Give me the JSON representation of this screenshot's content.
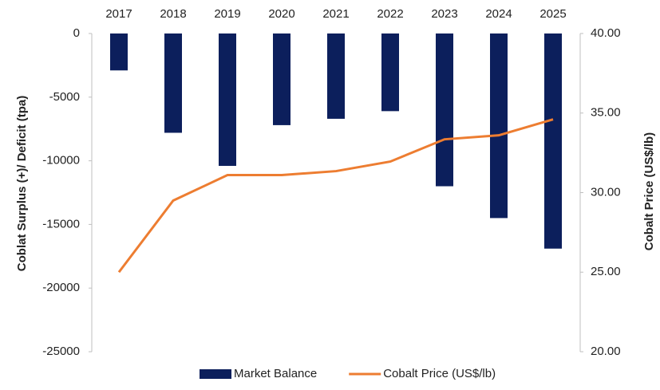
{
  "chart_data": {
    "type": "bar",
    "categories": [
      "2017",
      "2018",
      "2019",
      "2020",
      "2021",
      "2022",
      "2023",
      "2024",
      "2025"
    ],
    "series": [
      {
        "name": "Market Balance",
        "color": "#0c1f5c",
        "values": [
          -2900,
          -7800,
          -10400,
          -7200,
          -6700,
          -6100,
          -12000,
          -14500,
          -16900
        ]
      },
      {
        "name": "Cobalt Price (US$/lb)",
        "color": "#ed7d31",
        "axis": "y2",
        "values": [
          25.0,
          29.5,
          31.1,
          31.1,
          31.35,
          31.95,
          33.35,
          33.6,
          34.6
        ]
      }
    ],
    "ylabel": "Coblat Surplus (+)/ Deficit (tpa)",
    "y2label": "Cobalt Price (US$/lb)",
    "ylim": [
      -25000,
      0
    ],
    "yticks": [
      0,
      -5000,
      -10000,
      -15000,
      -20000,
      -25000
    ],
    "y2lim": [
      20,
      40
    ],
    "y2ticks": [
      {
        "value": 40,
        "label": "40.00"
      },
      {
        "value": 35,
        "label": "35.00"
      },
      {
        "value": 30,
        "label": "30.00"
      },
      {
        "value": 25,
        "label": "25.00"
      },
      {
        "value": 20,
        "label": "20.00"
      }
    ],
    "legend": "bottom"
  }
}
